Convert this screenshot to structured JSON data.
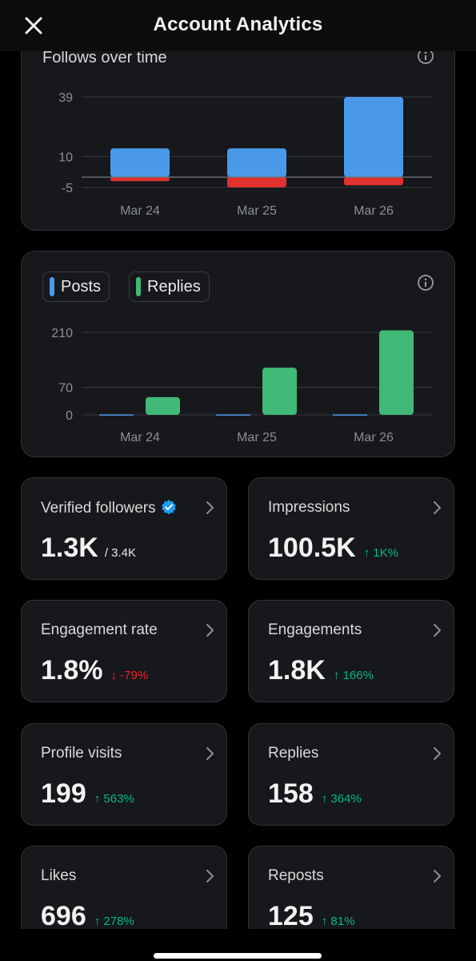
{
  "header": {
    "title": "Account Analytics",
    "close_icon": "close-icon"
  },
  "follows_chart": {
    "title": "Follows over time",
    "chart_data": {
      "type": "bar",
      "title": "Follows over time",
      "categories": [
        "Mar 24",
        "Mar 25",
        "Mar 26"
      ],
      "series": [
        {
          "values": [
            14,
            14,
            39
          ],
          "color": "#4a99e9"
        },
        {
          "values": [
            -2,
            -5,
            -4
          ],
          "color": "#e0312f"
        }
      ],
      "ylim": [
        -5,
        39
      ],
      "ytick_labels": [
        "39",
        "10",
        "-5"
      ],
      "grid": true
    }
  },
  "posts_chart": {
    "legend": [
      {
        "label": "Posts",
        "color": "#4a99e9"
      },
      {
        "label": "Replies",
        "color": "#41b977"
      }
    ],
    "chart_data": {
      "type": "bar",
      "categories": [
        "Mar 24",
        "Mar 25",
        "Mar 26"
      ],
      "series": [
        {
          "name": "Posts",
          "values": [
            1,
            1,
            1
          ],
          "color": "#4a99e9"
        },
        {
          "name": "Replies",
          "values": [
            45,
            120,
            215
          ],
          "color": "#41b977"
        }
      ],
      "ylim": [
        0,
        210
      ],
      "ytick_labels": [
        "210",
        "70",
        "0"
      ],
      "grid": true
    }
  },
  "stats": [
    {
      "label": "Verified followers",
      "value": "1.3K",
      "sub": "/ 3.4K",
      "change": "",
      "direction": "",
      "verified": true
    },
    {
      "label": "Impressions",
      "value": "100.5K",
      "sub": "",
      "change": "↑ 1K%",
      "direction": "up",
      "verified": false
    },
    {
      "label": "Engagement rate",
      "value": "1.8%",
      "sub": "",
      "change": "↓ -79%",
      "direction": "down",
      "verified": false
    },
    {
      "label": "Engagements",
      "value": "1.8K",
      "sub": "",
      "change": "↑ 166%",
      "direction": "up",
      "verified": false
    },
    {
      "label": "Profile visits",
      "value": "199",
      "sub": "",
      "change": "↑ 563%",
      "direction": "up",
      "verified": false
    },
    {
      "label": "Replies",
      "value": "158",
      "sub": "",
      "change": "↑ 364%",
      "direction": "up",
      "verified": false
    },
    {
      "label": "Likes",
      "value": "696",
      "sub": "",
      "change": "↑ 278%",
      "direction": "up",
      "verified": false
    },
    {
      "label": "Reposts",
      "value": "125",
      "sub": "",
      "change": "↑ 81%",
      "direction": "up",
      "verified": false
    }
  ],
  "colors": {
    "up": "#00ba7c",
    "down": "#f4212e",
    "card_bg": "#16181c",
    "border": "#2f3336"
  }
}
